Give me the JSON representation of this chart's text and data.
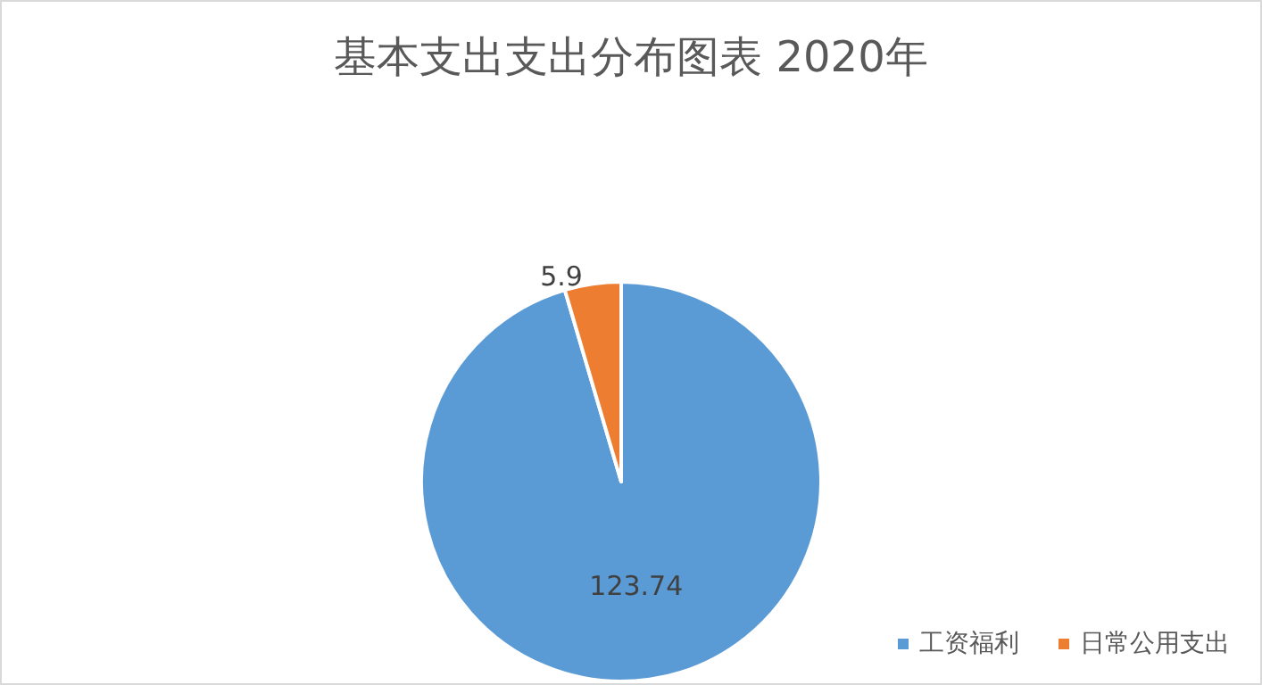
{
  "chart_data": {
    "type": "pie",
    "title": "基本支出支出分布图表 2020年",
    "categories": [
      "工资福利",
      "日常公用支出"
    ],
    "values": [
      123.74,
      5.9
    ],
    "colors": [
      "#5b9bd5",
      "#ed7d31"
    ],
    "data_labels": true,
    "legend": "bottom right"
  }
}
